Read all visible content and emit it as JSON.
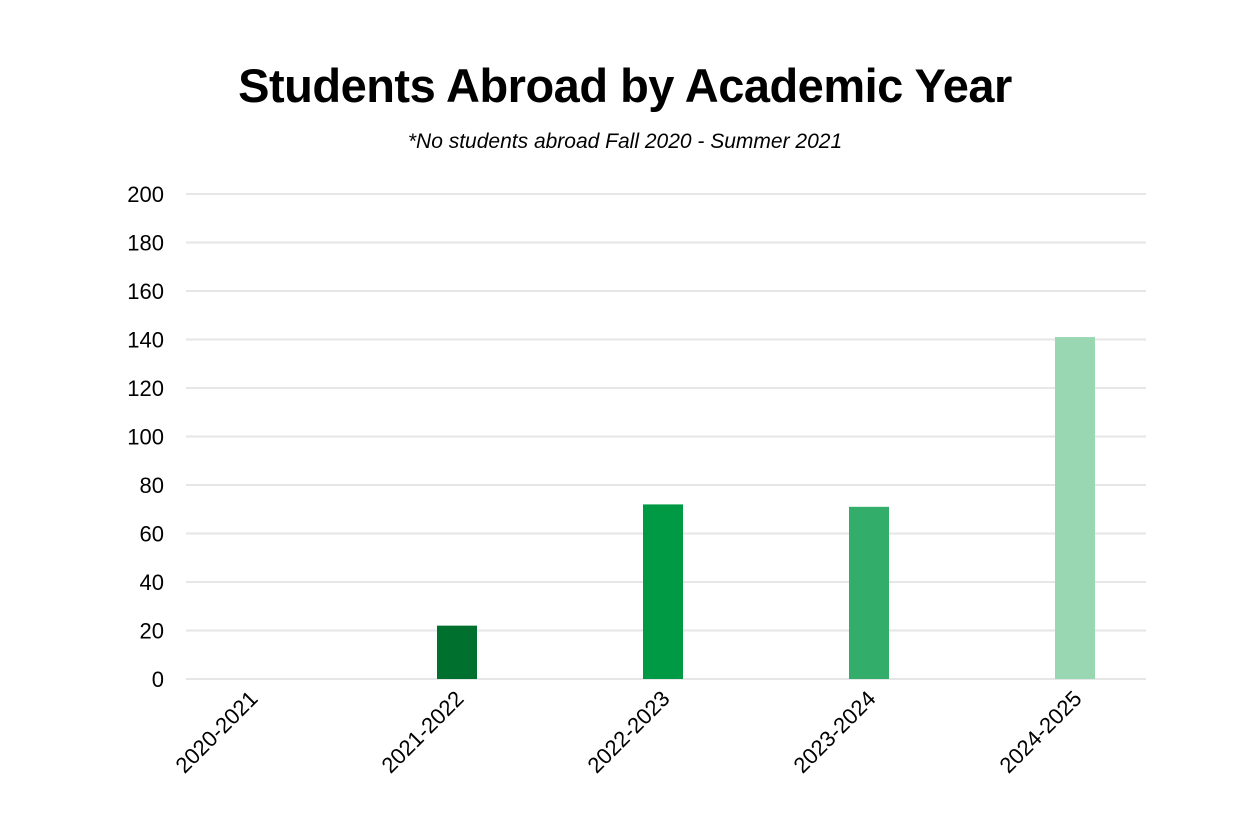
{
  "chart_data": {
    "type": "bar",
    "title": "Students Abroad by Academic Year",
    "subtitle": "*No students abroad Fall 2020 - Summer 2021",
    "categories": [
      "2020-2021",
      "2021-2022",
      "2022-2023",
      "2023-2024",
      "2024-2025"
    ],
    "values": [
      0,
      22,
      72,
      71,
      141
    ],
    "colors": [
      "#00702f",
      "#00702f",
      "#009a44",
      "#33ae6a",
      "#99d6b2"
    ],
    "ylim": [
      0,
      200
    ],
    "yticks": [
      0,
      20,
      40,
      60,
      80,
      100,
      120,
      140,
      160,
      180,
      200
    ],
    "xlabel": "",
    "ylabel": "",
    "grid": true,
    "legend": "none"
  }
}
